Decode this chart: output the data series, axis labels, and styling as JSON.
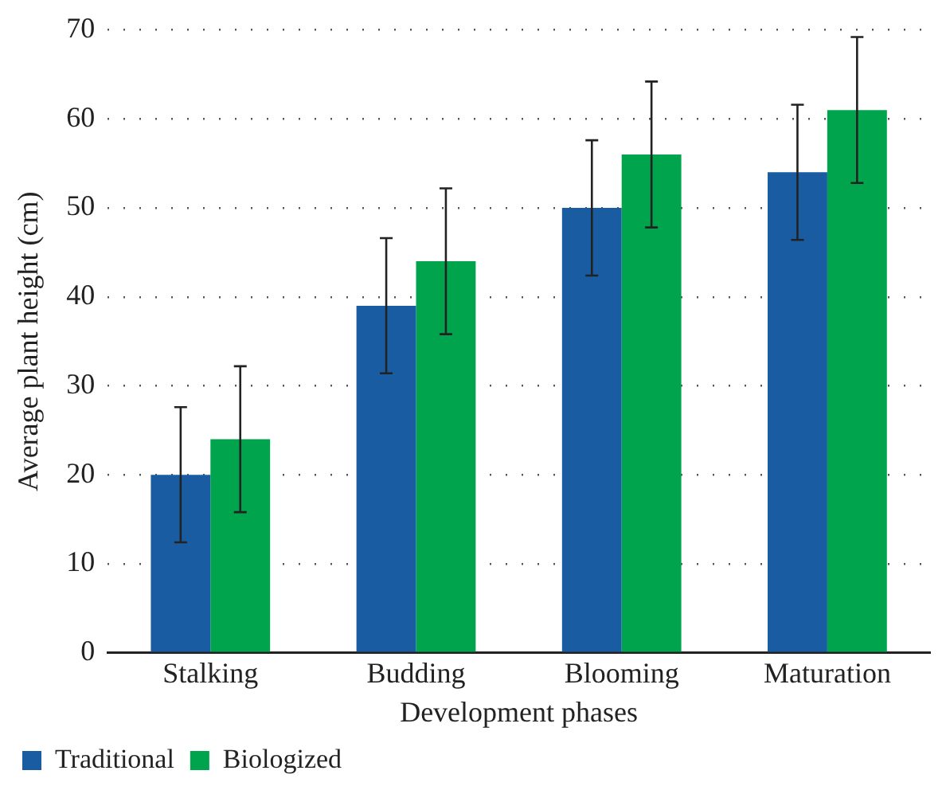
{
  "chart_data": {
    "type": "bar",
    "xlabel": "Development phases",
    "ylabel": "Average plant height (cm)",
    "categories": [
      "Stalking",
      "Budding",
      "Blooming",
      "Maturation"
    ],
    "series": [
      {
        "name": "Traditional",
        "color": "#1a5ca1",
        "values": [
          20,
          39,
          50,
          54
        ],
        "errors": [
          7.6,
          7.6,
          7.6,
          7.6
        ]
      },
      {
        "name": "Biologized",
        "color": "#00a44c",
        "values": [
          24,
          44,
          56,
          61
        ],
        "errors": [
          8.2,
          8.2,
          8.2,
          8.2
        ]
      }
    ],
    "ylim": [
      0,
      70
    ],
    "yticks": [
      0,
      10,
      20,
      30,
      40,
      50,
      60,
      70
    ],
    "grid": "y",
    "legend": "bottom left"
  }
}
